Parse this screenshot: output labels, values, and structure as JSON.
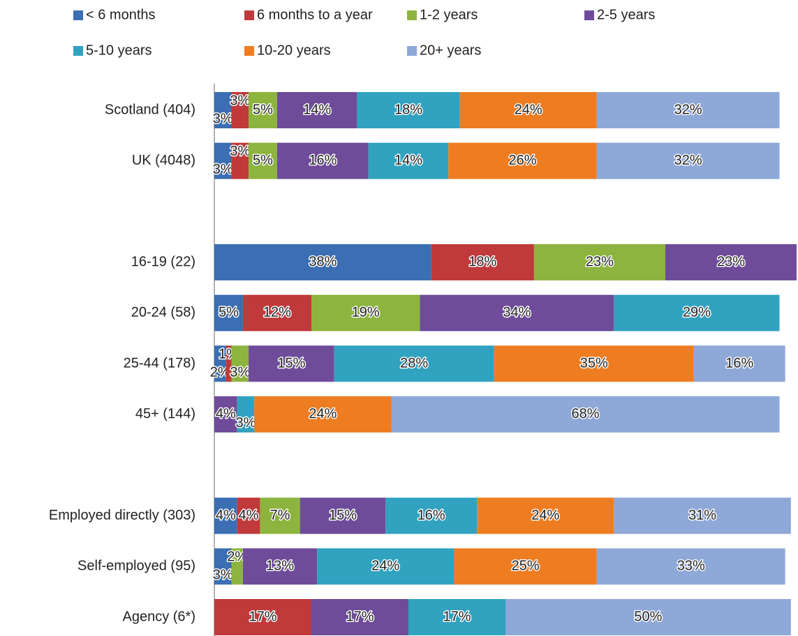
{
  "chart_data": {
    "type": "stacked-bar-horizontal",
    "categories": [
      "Scotland (404)",
      "UK (4048)",
      null,
      "16-19 (22)",
      "20-24 (58)",
      "25-44 (178)",
      "45+ (144)",
      null,
      "Employed directly (303)",
      "Self-employed (95)",
      "Agency (6*)"
    ],
    "legend": "top",
    "series": [
      {
        "name": "< 6 months",
        "color": "#3b6eb3",
        "values": [
          3,
          3,
          null,
          38,
          5,
          2,
          null,
          null,
          4,
          3,
          null
        ],
        "value_labels": [
          "3%",
          "3%",
          null,
          "38%",
          "5%",
          "2%",
          null,
          null,
          "4%",
          "3%",
          null
        ]
      },
      {
        "name": "6 months to a year",
        "color": "#c0393b",
        "values": [
          3,
          3,
          null,
          18,
          12,
          1,
          null,
          null,
          4,
          null,
          17
        ],
        "value_labels": [
          "3%",
          "3%",
          null,
          "18%",
          "12%",
          "1%",
          null,
          null,
          "4%",
          null,
          "17%"
        ]
      },
      {
        "name": "1-2 years",
        "color": "#8db43e",
        "values": [
          5,
          5,
          null,
          23,
          19,
          3,
          null,
          null,
          7,
          2,
          null
        ],
        "value_labels": [
          "5%",
          "5%",
          null,
          "23%",
          "19%",
          "3%",
          null,
          null,
          "7%",
          "2%",
          null
        ]
      },
      {
        "name": "2-5 years",
        "color": "#6e4c9a",
        "values": [
          14,
          16,
          null,
          23,
          34,
          15,
          4,
          null,
          15,
          13,
          17
        ],
        "value_labels": [
          "14%",
          "16%",
          null,
          "23%",
          "34%",
          "15%",
          "4%",
          null,
          "15%",
          "13%",
          "17%"
        ]
      },
      {
        "name": "5-10 years",
        "color": "#31a2c0",
        "values": [
          18,
          14,
          null,
          null,
          29,
          28,
          3,
          null,
          16,
          24,
          17
        ],
        "value_labels": [
          "18%",
          "14%",
          null,
          null,
          "29%",
          "28%",
          "3%",
          null,
          "16%",
          "24%",
          "17%"
        ]
      },
      {
        "name": "10-20 years",
        "color": "#ee7d22",
        "values": [
          24,
          26,
          null,
          null,
          null,
          35,
          24,
          null,
          24,
          25,
          null
        ],
        "value_labels": [
          "24%",
          "26%",
          null,
          null,
          null,
          "35%",
          "24%",
          null,
          "24%",
          "25%",
          null
        ]
      },
      {
        "name": "20+ years",
        "color": "#8ea8d8",
        "values": [
          32,
          32,
          null,
          null,
          null,
          16,
          68,
          null,
          31,
          33,
          50
        ],
        "value_labels": [
          "32%",
          "32%",
          null,
          null,
          null,
          "16%",
          "68%",
          null,
          "31%",
          "33%",
          "50%"
        ]
      }
    ]
  }
}
